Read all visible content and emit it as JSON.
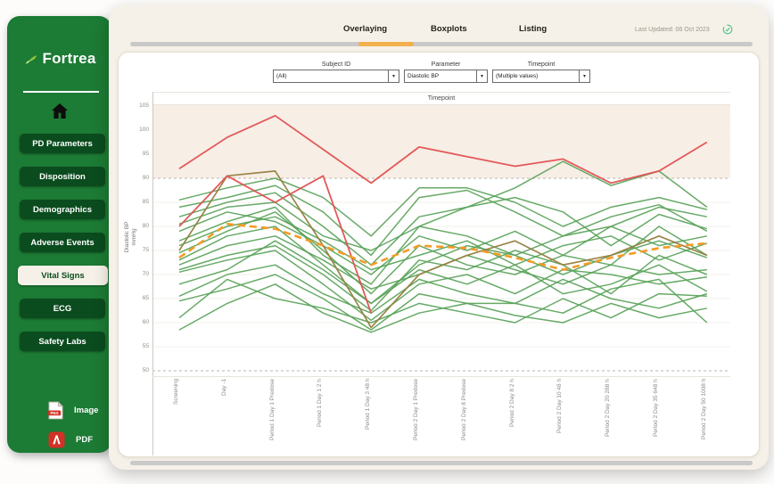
{
  "colors": {
    "sidebar_green": "#1c7b34",
    "nav_button_green": "#0b4c1e",
    "cream": "#f6f1e8",
    "accent_orange": "#f2b04c",
    "track_gray": "#c9c9c9",
    "mean_orange": "#f59b25",
    "subject_green": "#56a156",
    "subject_red": "#e05151",
    "subject_olive": "#95803f",
    "band_beige": "#f7eee6",
    "pdf_red": "#d23125",
    "check_green": "#45c287"
  },
  "sidebar": {
    "logo_text": "Fortrea",
    "home_icon": "home-icon",
    "items": [
      {
        "label": "PD Parameters",
        "active": false
      },
      {
        "label": "Disposition",
        "active": false
      },
      {
        "label": "Demographics",
        "active": false
      },
      {
        "label": "Adverse Events",
        "active": false
      },
      {
        "label": "Vital Signs",
        "active": true
      },
      {
        "label": "ECG",
        "active": false
      },
      {
        "label": "Safety Labs",
        "active": false
      }
    ],
    "exports": [
      {
        "label": "Image",
        "icon": "png-file-icon",
        "badge": "PNG"
      },
      {
        "label": "PDF",
        "icon": "pdf-file-icon"
      }
    ]
  },
  "header": {
    "tabs": [
      {
        "label": "Overlaying",
        "active": true
      },
      {
        "label": "Boxplots",
        "active": false
      },
      {
        "label": "Listing",
        "active": false
      }
    ],
    "last_updated": "Last Updated: 06 Oct 2023",
    "refresh_icon": "check-refresh-icon"
  },
  "filters": [
    {
      "label": "Subject ID",
      "value": "(All)"
    },
    {
      "label": "Parameter",
      "value": "Diastolic BP"
    },
    {
      "label": "Timepoint",
      "value": "(Multiple values)"
    }
  ],
  "chart_data": {
    "type": "line",
    "title": "Timepoint",
    "ylabel_line1": "Diastolic BP",
    "ylabel_line2": "mmHg",
    "ylim": [
      50,
      105
    ],
    "yticks": [
      105,
      100,
      95,
      90,
      85,
      80,
      75,
      70,
      65,
      60,
      55,
      50
    ],
    "reference_dashed_lines": [
      90,
      50
    ],
    "shaded_band_above": 90,
    "grid": true,
    "legend": "none",
    "categories": [
      "Screening",
      "Day -1",
      "Period 1 Day 1 Predose",
      "Period 1 Day 1 2 h",
      "Period 1 Day 3 48 h",
      "Period 2 Day 1 Predose",
      "Period 2 Day 8 Predose",
      "Period 2 Day 8 2 h",
      "Period 2 Day 10 48 h",
      "Period 2 Day 20 288 h",
      "Period 2 Day 35 648 h",
      "Period 2 Day 50 1008 h"
    ],
    "line_styles": {
      "green": {
        "color": "#56a156",
        "width": 1.5,
        "opacity": 0.9
      },
      "olive": {
        "color": "#95803f",
        "width": 1.7,
        "opacity": 0.95
      },
      "red": {
        "color": "#e05151",
        "width": 1.8,
        "opacity": 0.95
      },
      "mean": {
        "color": "#f59b25",
        "width": 2.6,
        "opacity": 1,
        "dash": "8 5"
      }
    },
    "series": [
      {
        "id": "green-01",
        "style": "green",
        "values": [
          85.5,
          88,
          90,
          86,
          78,
          88,
          88,
          85,
          80,
          84,
          86,
          83.5
        ]
      },
      {
        "id": "green-02",
        "style": "green",
        "values": [
          84,
          86,
          88.5,
          83,
          74,
          86,
          87.5,
          83,
          78,
          80,
          84,
          82
        ]
      },
      {
        "id": "green-03",
        "style": "green",
        "values": [
          82,
          85,
          87,
          80,
          72,
          82,
          84,
          86,
          83,
          76,
          82.5,
          79.5
        ]
      },
      {
        "id": "green-04",
        "style": "green",
        "values": [
          80.5,
          84,
          85,
          78,
          75,
          80,
          78,
          74,
          78,
          82,
          84.5,
          79
        ]
      },
      {
        "id": "green-05",
        "style": "green",
        "values": [
          79,
          83,
          81,
          76,
          70,
          78,
          75,
          79,
          74,
          80,
          76,
          78
        ]
      },
      {
        "id": "green-06",
        "style": "green",
        "values": [
          77,
          81,
          84,
          74,
          68,
          80,
          84,
          88,
          93.5,
          88.5,
          91.5,
          84
        ]
      },
      {
        "id": "green-07",
        "style": "green",
        "values": [
          76,
          80,
          82,
          77,
          71,
          74,
          77,
          72,
          76,
          78,
          73,
          76.5
        ]
      },
      {
        "id": "green-08",
        "style": "green",
        "values": [
          74.5,
          79,
          83,
          75,
          66,
          76,
          72,
          70,
          74,
          72,
          80,
          74
        ]
      },
      {
        "id": "green-09",
        "style": "green",
        "values": [
          73,
          78,
          80,
          72,
          64,
          72,
          76,
          74,
          70,
          74,
          77,
          73.5
        ]
      },
      {
        "id": "green-10",
        "style": "green",
        "values": [
          72,
          76,
          78,
          73,
          67,
          70,
          74,
          71,
          68,
          72,
          70,
          71
        ]
      },
      {
        "id": "green-11",
        "style": "green",
        "values": [
          71,
          74,
          76,
          70,
          62.5,
          73,
          71,
          75,
          72,
          66,
          74,
          70
        ]
      },
      {
        "id": "green-12",
        "style": "green",
        "values": [
          70.5,
          73,
          75,
          68,
          60.5,
          68,
          70,
          66,
          71,
          70,
          68,
          69.5
        ]
      },
      {
        "id": "green-13",
        "style": "green",
        "values": [
          68,
          71,
          77,
          71,
          64,
          71,
          68,
          72,
          66,
          68,
          72,
          66.5
        ]
      },
      {
        "id": "green-14",
        "style": "green",
        "values": [
          65.5,
          70,
          72,
          66,
          62,
          69,
          66,
          64,
          69,
          65,
          63,
          66
        ]
      },
      {
        "id": "green-15",
        "style": "green",
        "values": [
          64.5,
          67,
          70,
          65,
          58.5,
          66,
          64,
          64,
          62,
          67,
          69,
          60
        ]
      },
      {
        "id": "green-16",
        "style": "green",
        "values": [
          61,
          69,
          65,
          63,
          60,
          64,
          62,
          60,
          65,
          61,
          66,
          65.5
        ]
      },
      {
        "id": "green-17",
        "style": "green",
        "values": [
          58.5,
          64,
          68,
          62,
          58,
          62,
          64,
          61.5,
          60,
          64,
          61,
          63
        ]
      },
      {
        "id": "olive-subject",
        "style": "olive",
        "values": [
          75,
          90.5,
          91.5,
          76,
          59,
          70,
          74,
          77,
          72,
          74,
          78,
          74
        ]
      },
      {
        "id": "red-subject-2",
        "style": "red",
        "values": [
          80,
          90.5,
          85,
          90.5,
          62,
          null,
          null,
          null,
          null,
          null,
          null,
          null
        ]
      },
      {
        "id": "red-subject-1",
        "style": "red",
        "values": [
          92,
          98.5,
          103,
          96,
          89,
          96.5,
          94.5,
          92.5,
          94,
          89,
          91.5,
          97.5
        ]
      },
      {
        "id": "mean",
        "style": "mean",
        "values": [
          73.5,
          80.5,
          79.5,
          76,
          72,
          76,
          75.5,
          73.5,
          71,
          73.5,
          75.5,
          76.5
        ]
      }
    ]
  }
}
